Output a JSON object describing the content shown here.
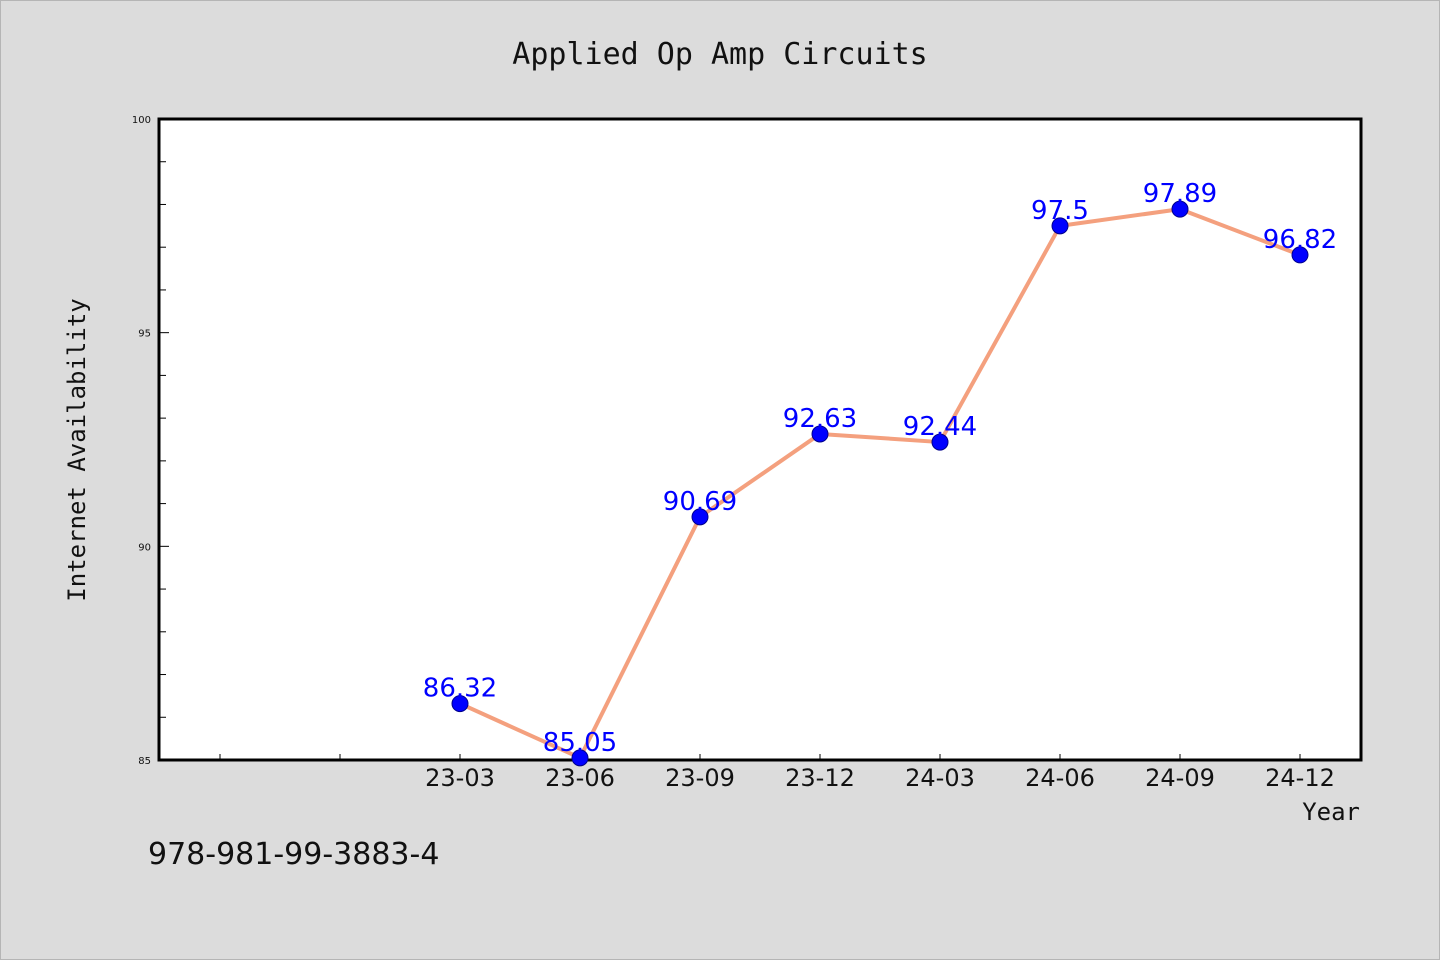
{
  "chart_data": {
    "type": "line",
    "title": "Applied Op Amp Circuits",
    "xlabel": "Year",
    "ylabel": "Internet Availability",
    "categories": [
      "23-03",
      "23-06",
      "23-09",
      "23-12",
      "24-03",
      "24-06",
      "24-09",
      "24-12"
    ],
    "series": [
      {
        "values": [
          86.32,
          85.05,
          90.69,
          92.63,
          92.44,
          97.5,
          97.89,
          96.82
        ],
        "labels": [
          "86.32",
          "85.05",
          "90.69",
          "92.63",
          "92.44",
          "97.5",
          "97.89",
          "96.82"
        ]
      }
    ],
    "ylim": [
      85,
      100
    ],
    "y_ticks": [
      "85",
      "90",
      "95",
      "100"
    ],
    "grid": false,
    "legend": "none",
    "colors": {
      "line": "#f4a07e",
      "marker": "#0000ff",
      "data_label": "#0000ff",
      "background": "#dcdcdc",
      "plot_background": "#ffffff"
    }
  },
  "footer_text": "978-981-99-3883-4"
}
